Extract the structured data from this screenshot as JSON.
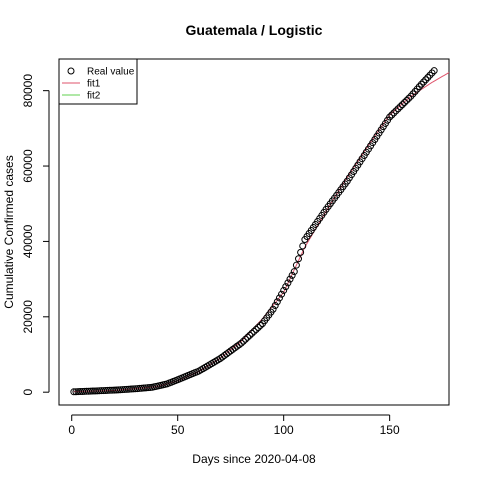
{
  "chart_data": {
    "type": "scatter",
    "title": "Guatemala / Logistic",
    "xlabel": "Days since 2020-04-08",
    "ylabel": "Cumulative Confirmed cases",
    "xlim": [
      -6,
      178
    ],
    "ylim": [
      -3400,
      88400
    ],
    "x_ticks": [
      0,
      50,
      100,
      150
    ],
    "y_ticks": [
      0,
      20000,
      40000,
      60000,
      80000
    ],
    "grid": false,
    "legend_position": "top-left",
    "colors": {
      "real_value": "#000000",
      "fit1": "#DF536B",
      "fit2": "#61D04F"
    },
    "real_value": {
      "name": "Real value",
      "x_start": 1,
      "x_end": 171,
      "anchors_x": [
        1,
        10,
        20,
        30,
        38,
        45,
        50,
        60,
        70,
        80,
        90,
        95,
        100,
        105,
        110,
        120,
        130,
        140,
        150,
        160,
        165,
        171
      ],
      "anchors_y": [
        100,
        300,
        550,
        900,
        1300,
        2200,
        3300,
        5600,
        8900,
        13000,
        18200,
        22000,
        27000,
        32000,
        40500,
        48500,
        56000,
        64500,
        73000,
        78500,
        81700,
        85300
      ]
    },
    "fit1": {
      "name": "fit1",
      "x": [
        1,
        20,
        40,
        50,
        60,
        70,
        80,
        90,
        100,
        110,
        120,
        130,
        140,
        150,
        160,
        170,
        178
      ],
      "values": [
        150,
        450,
        1450,
        3000,
        5500,
        9000,
        13500,
        19500,
        26500,
        38500,
        48000,
        57000,
        65500,
        73500,
        78500,
        82200,
        84800
      ]
    },
    "fit2": {
      "name": "fit2",
      "x": [],
      "values": []
    }
  }
}
